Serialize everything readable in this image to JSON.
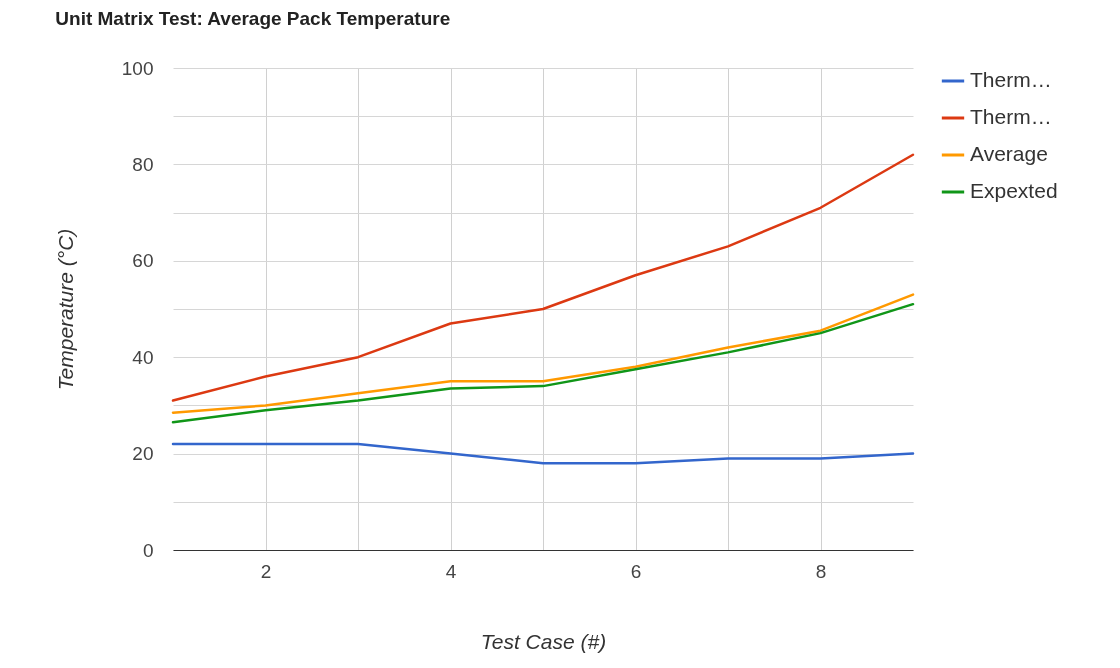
{
  "chart_data": {
    "type": "line",
    "title": "Unit Matrix Test: Average Pack Temperature",
    "xlabel": "Test Case (#)",
    "ylabel": "Temperature (°C)",
    "x": [
      1,
      2,
      3,
      4,
      5,
      6,
      7,
      8,
      9
    ],
    "series": [
      {
        "name": "Therm…",
        "color": "#3366cc",
        "values": [
          22,
          22,
          22,
          20,
          18,
          18,
          19,
          19,
          20
        ]
      },
      {
        "name": "Therm…",
        "color": "#dc3912",
        "values": [
          31,
          36,
          40,
          47,
          50,
          57,
          63,
          71,
          82
        ]
      },
      {
        "name": "Average",
        "color": "#ff9900",
        "values": [
          28.5,
          30,
          32.5,
          35,
          35,
          38,
          42,
          45.5,
          53
        ]
      },
      {
        "name": "Expexted",
        "color": "#109618",
        "values": [
          26.5,
          29,
          31,
          33.5,
          34,
          37.5,
          41,
          45,
          51
        ]
      }
    ],
    "xlim": [
      1,
      9
    ],
    "xticks": [
      2,
      {
        "value": 3,
        "label": null
      },
      4,
      {
        "value": 5,
        "label": null
      },
      6,
      {
        "value": 7,
        "label": null
      },
      8
    ],
    "ylim": [
      0,
      100
    ],
    "yticks": [
      0,
      {
        "value": 10,
        "label": null
      },
      20,
      {
        "value": 30,
        "label": null
      },
      40,
      {
        "value": 50,
        "label": null
      },
      60,
      {
        "value": 70,
        "label": null
      },
      80,
      {
        "value": 90,
        "label": null
      },
      100
    ],
    "grid": true,
    "legend": "top right",
    "marker": "none",
    "line_style": "solid"
  }
}
